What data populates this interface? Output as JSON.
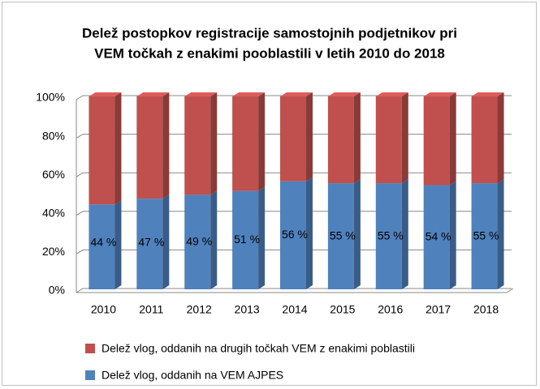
{
  "chart_data": {
    "type": "bar",
    "stacked": true,
    "title": [
      "Delež postopkov registracije samostojnih podjetnikov pri",
      "VEM točkah z enakimi pooblastili v letih 2010 do 2018"
    ],
    "categories": [
      "2010",
      "2011",
      "2012",
      "2013",
      "2014",
      "2015",
      "2016",
      "2017",
      "2018"
    ],
    "series": [
      {
        "name": "Delež vlog, oddanih na VEM AJPES",
        "color": "#4f81bd",
        "values": [
          44,
          47,
          49,
          51,
          56,
          55,
          55,
          54,
          55
        ],
        "value_labels": [
          "44 %",
          "47 %",
          "49 %",
          "51 %",
          "56 %",
          "55 %",
          "55 %",
          "54 %",
          "55 %"
        ]
      },
      {
        "name": "Delež vlog, oddanih na drugih točkah VEM z enakimi poblastili",
        "color": "#c0504d",
        "values": [
          56,
          53,
          51,
          49,
          44,
          45,
          45,
          46,
          45
        ]
      }
    ],
    "ylim": [
      0,
      100
    ],
    "yticks": [
      {
        "value": 0,
        "label": "0%"
      },
      {
        "value": 20,
        "label": "20%"
      },
      {
        "value": 40,
        "label": "40%"
      },
      {
        "value": 60,
        "label": "60%"
      },
      {
        "value": 80,
        "label": "80%"
      },
      {
        "value": 100,
        "label": "100%"
      }
    ],
    "grid": true,
    "legend": "bottom"
  }
}
